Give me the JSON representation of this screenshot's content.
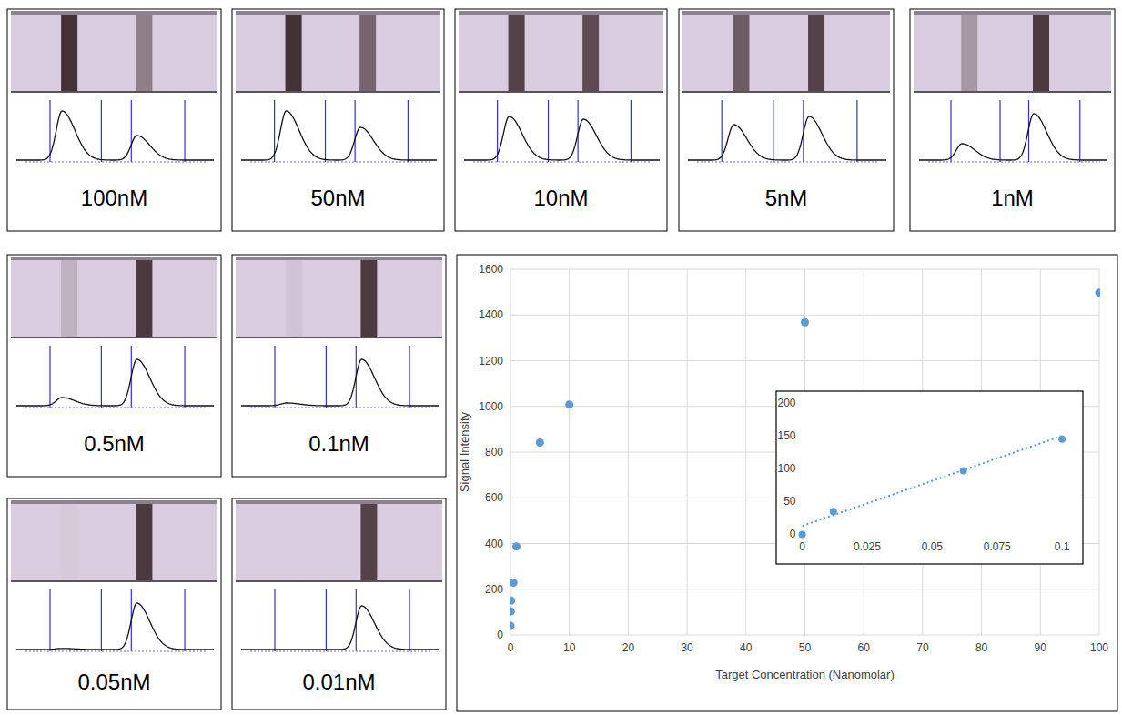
{
  "strips": [
    {
      "label": "100nM",
      "band_1": 0.9,
      "band_2": 0.45
    },
    {
      "label": "50nM",
      "band_1": 0.9,
      "band_2": 0.6
    },
    {
      "label": "10nM",
      "band_1": 0.8,
      "band_2": 0.75
    },
    {
      "label": "5nM",
      "band_1": 0.65,
      "band_2": 0.8
    },
    {
      "label": "1nM",
      "band_1": 0.3,
      "band_2": 0.85
    },
    {
      "label": "0.5nM",
      "band_1": 0.15,
      "band_2": 0.85
    },
    {
      "label": "0.1nM",
      "band_1": 0.05,
      "band_2": 0.85
    },
    {
      "label": "0.05nM",
      "band_1": 0.02,
      "band_2": 0.85
    },
    {
      "label": "0.01nM",
      "band_1": 0.0,
      "band_2": 0.8
    }
  ],
  "chart_data": [
    {
      "type": "scatter",
      "x_label": "Target Concentration (Nanomolar)",
      "y_label": "Signal Intensity",
      "x": [
        0.01,
        0.05,
        0.1,
        0.5,
        1,
        5,
        10,
        50,
        100
      ],
      "values": [
        40,
        103,
        150,
        229,
        387,
        842,
        1008,
        1368,
        1498
      ],
      "color": "#5b9bd5",
      "marker": "circle",
      "xlim": [
        0,
        100
      ],
      "ylim": [
        0,
        1600
      ],
      "xticks": [
        0,
        10,
        20,
        30,
        40,
        50,
        60,
        70,
        80,
        90,
        100
      ],
      "yticks": [
        0,
        200,
        400,
        600,
        800,
        1000,
        1200,
        1400,
        1600
      ],
      "grid": true
    },
    {
      "type": "scatter",
      "series": [
        {
          "type": "scatter",
          "x": [
            0,
            0.012,
            0.062,
            0.1
          ],
          "values": [
            0,
            35,
            97,
            145
          ],
          "color": "#5b9bd5",
          "marker": "circle"
        },
        {
          "type": "line",
          "x": [
            0,
            0.1
          ],
          "values": [
            13,
            150
          ],
          "color": "#5b9bd5",
          "line_style": "dotted"
        }
      ],
      "xlim": [
        -0.01,
        0.108
      ],
      "ylim": [
        -45,
        218
      ],
      "xticks": [
        0,
        0.025,
        0.05,
        0.075,
        0.1
      ],
      "yticks": [
        0,
        50,
        100,
        150,
        200
      ],
      "grid": false
    }
  ]
}
